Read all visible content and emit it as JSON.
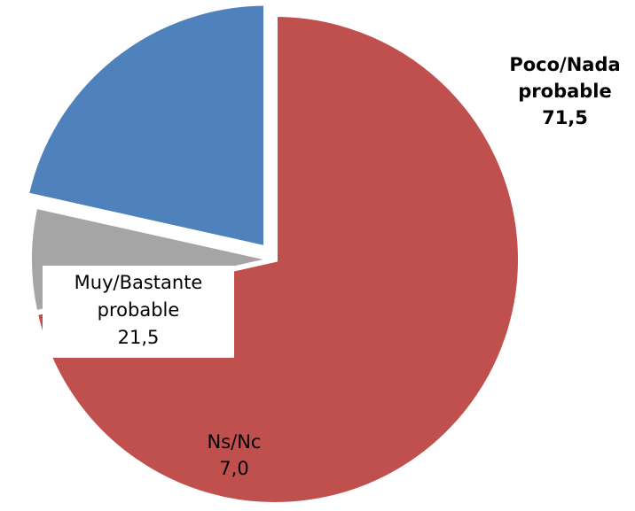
{
  "chart_data": {
    "type": "pie",
    "title": "",
    "slices": [
      {
        "name": "Poco/Nada probable",
        "value": 71.5,
        "value_label": "71,5",
        "label_lines": [
          "Poco/Nada",
          "probable",
          "71,5"
        ],
        "color": "#C0504D",
        "bold": true
      },
      {
        "name": "Ns/Nc",
        "value": 7.0,
        "value_label": "7,0",
        "label_lines": [
          "Ns/Nc",
          "7,0"
        ],
        "color": "#A5A5A5",
        "bold": false
      },
      {
        "name": "Muy/Bastante probable",
        "value": 21.5,
        "value_label": "21,5",
        "label_lines": [
          "Muy/Bastante",
          "probable",
          "21,5"
        ],
        "color": "#4F81BD",
        "bold": false,
        "exploded": true
      }
    ],
    "legend": "none"
  }
}
